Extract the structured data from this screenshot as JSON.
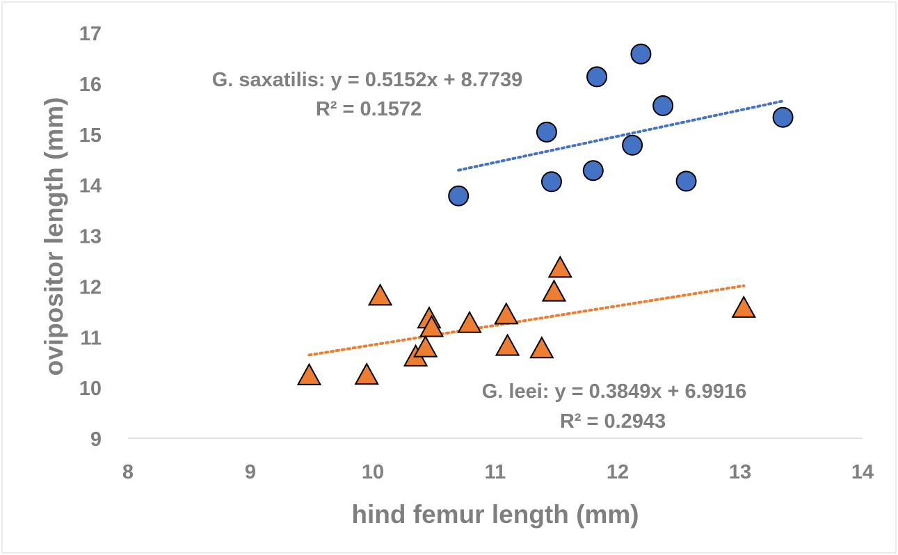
{
  "chart_data": {
    "type": "scatter",
    "xlabel": "hind femur length (mm)",
    "ylabel": "ovipositor length (mm)",
    "xlim": [
      8,
      14
    ],
    "ylim": [
      9,
      17
    ],
    "xticks": [
      8,
      9,
      10,
      11,
      12,
      13,
      14
    ],
    "yticks": [
      9,
      10,
      11,
      12,
      13,
      14,
      15,
      16,
      17
    ],
    "grid": false,
    "series": [
      {
        "marker": "circle",
        "color": "#4472c4",
        "x": [
          10.7,
          11.42,
          11.46,
          11.8,
          11.83,
          12.12,
          12.19,
          12.37,
          12.56,
          13.35
        ],
        "y": [
          13.78,
          15.04,
          14.06,
          14.28,
          16.13,
          14.78,
          16.58,
          15.56,
          14.07,
          15.33
        ],
        "trendline": {
          "slope": 0.5152,
          "intercept": 8.7739,
          "x_range": [
            10.7,
            13.35
          ],
          "equation": "G. saxatilis: y = 0.5152x + 8.7739",
          "r2": "R² = 0.1572"
        }
      },
      {
        "marker": "triangle",
        "color": "#ed7d31",
        "x": [
          9.48,
          9.95,
          10.06,
          10.35,
          10.43,
          10.46,
          10.48,
          10.79,
          11.09,
          11.1,
          11.38,
          11.48,
          11.53,
          13.03
        ],
        "y": [
          10.21,
          10.22,
          11.78,
          10.58,
          10.76,
          11.33,
          11.16,
          11.24,
          11.41,
          10.79,
          10.74,
          11.86,
          12.33,
          11.54
        ],
        "trendline": {
          "slope": 0.3849,
          "intercept": 6.9916,
          "x_range": [
            9.48,
            13.03
          ],
          "equation": "G. leei: y = 0.3849x + 6.9916",
          "r2": "R² = 0.2943"
        }
      }
    ]
  }
}
